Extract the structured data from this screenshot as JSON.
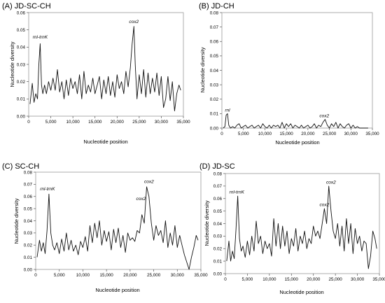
{
  "chart_data": [
    {
      "panel_title": "(A) JD-SC-CH",
      "type": "line",
      "xlabel": "Nucleotide position",
      "ylabel": "Nucleotide diversity",
      "xlim": [
        0,
        35000
      ],
      "ylim": [
        0,
        0.06
      ],
      "xticks": [
        0,
        5000,
        10000,
        15000,
        20000,
        25000,
        30000,
        35000
      ],
      "xtick_labels": [
        "0",
        "5,000",
        "10,000",
        "15,000",
        "20,000",
        "25,000",
        "30,000",
        "35,000"
      ],
      "yticks": [
        0,
        0.01,
        0.02,
        0.03,
        0.04,
        0.05,
        0.06
      ],
      "ytick_labels": [
        "0.00",
        "0.01",
        "0.02",
        "0.03",
        "0.04",
        "0.05",
        "0.06"
      ],
      "annotations": [
        {
          "text": "rnl-trnK",
          "x": 2600,
          "y": 0.045
        },
        {
          "text": "cox2",
          "x": 23800,
          "y": 0.054
        }
      ],
      "series": [
        {
          "x": [
            300,
            800,
            1200,
            1600,
            2000,
            2300,
            2600,
            2900,
            3200,
            3600,
            4000,
            4500,
            5000,
            5500,
            6000,
            6500,
            7000,
            7500,
            8000,
            8500,
            9000,
            9500,
            10000,
            10500,
            11000,
            11500,
            12000,
            12500,
            13000,
            13500,
            14000,
            14500,
            15000,
            15500,
            16000,
            16500,
            17000,
            17500,
            18000,
            18500,
            19000,
            19500,
            20000,
            20500,
            21000,
            21500,
            22000,
            22500,
            23000,
            23400,
            23800,
            24100,
            24500,
            25000,
            25500,
            26000,
            26500,
            27000,
            27500,
            28000,
            28500,
            29000,
            29500,
            30000,
            30500,
            31000,
            31500,
            32000,
            32500,
            33000,
            33500,
            34000,
            34400
          ],
          "y": [
            0.007,
            0.019,
            0.008,
            0.013,
            0.01,
            0.03,
            0.042,
            0.018,
            0.013,
            0.018,
            0.013,
            0.02,
            0.015,
            0.022,
            0.015,
            0.027,
            0.014,
            0.02,
            0.01,
            0.021,
            0.012,
            0.022,
            0.016,
            0.02,
            0.013,
            0.024,
            0.01,
            0.026,
            0.013,
            0.018,
            0.014,
            0.022,
            0.013,
            0.018,
            0.023,
            0.01,
            0.021,
            0.013,
            0.023,
            0.012,
            0.02,
            0.011,
            0.024,
            0.016,
            0.02,
            0.013,
            0.026,
            0.017,
            0.028,
            0.042,
            0.052,
            0.03,
            0.01,
            0.024,
            0.013,
            0.027,
            0.011,
            0.025,
            0.013,
            0.022,
            0.014,
            0.025,
            0.012,
            0.023,
            0.005,
            0.01,
            0.023,
            0.009,
            0.02,
            0.003,
            0.013,
            0.018,
            0.015
          ]
        }
      ]
    },
    {
      "panel_title": "(B) JD-CH",
      "type": "line",
      "xlabel": "Nucleotide position",
      "ylabel": "Nucleotide diversity",
      "xlim": [
        0,
        35000
      ],
      "ylim": [
        0,
        0.08
      ],
      "xticks": [
        0,
        5000,
        10000,
        15000,
        20000,
        25000,
        30000,
        35000
      ],
      "xtick_labels": [
        "0",
        "5,000",
        "10,000",
        "15,000",
        "20,000",
        "25,000",
        "30,000",
        "35,000"
      ],
      "yticks": [
        0,
        0.01,
        0.02,
        0.03,
        0.04,
        0.05,
        0.06,
        0.07,
        0.08
      ],
      "ytick_labels": [
        "0.00",
        "0.01",
        "0.02",
        "0.03",
        "0.04",
        "0.05",
        "0.06",
        "0.07",
        "0.08"
      ],
      "annotations": [
        {
          "text": "rnl",
          "x": 1300,
          "y": 0.0115
        },
        {
          "text": "cox2",
          "x": 23800,
          "y": 0.0075
        }
      ],
      "series": [
        {
          "x": [
            300,
            700,
            1000,
            1300,
            1600,
            2000,
            2500,
            3000,
            3500,
            4000,
            4500,
            5000,
            5500,
            6000,
            6500,
            7000,
            7500,
            8000,
            8500,
            9000,
            9500,
            10000,
            10500,
            11000,
            11500,
            12000,
            12500,
            13000,
            13500,
            14000,
            14500,
            15000,
            15500,
            16000,
            16500,
            17000,
            17500,
            18000,
            18500,
            19000,
            19500,
            20000,
            20500,
            21000,
            21500,
            22000,
            22500,
            23000,
            23500,
            24000,
            24500,
            25000,
            25500,
            26000,
            26500,
            27000,
            27500,
            28000,
            28500,
            29000,
            29500,
            30000,
            30500,
            31000,
            31500,
            32000,
            32500,
            33000,
            33500,
            34000
          ],
          "y": [
            0.0,
            0.001,
            0.009,
            0.01,
            0.002,
            0.0,
            0.001,
            0.0,
            0.002,
            0.003,
            0.0,
            0.001,
            0.002,
            0.0,
            0.001,
            0.002,
            0.0,
            0.001,
            0.002,
            0.0,
            0.003,
            0.001,
            0.0,
            0.002,
            0.0,
            0.002,
            0.001,
            0.002,
            0.0,
            0.004,
            0.0,
            0.003,
            0.001,
            0.003,
            0.0,
            0.002,
            0.001,
            0.0,
            0.002,
            0.0,
            0.001,
            0.002,
            0.0,
            0.001,
            0.003,
            0.0,
            0.002,
            0.001,
            0.004,
            0.006,
            0.002,
            0.0,
            0.003,
            0.001,
            0.004,
            0.0,
            0.003,
            0.001,
            0.0,
            0.002,
            0.003,
            0.0,
            0.002,
            0.0,
            0.001,
            0.0,
            0.0,
            0.0,
            0.0,
            0.0
          ]
        }
      ]
    },
    {
      "panel_title": "(C) SC-CH",
      "type": "line",
      "xlabel": "Nucleotide position",
      "ylabel": "Nucleotide diversity",
      "xlim": [
        0,
        35000
      ],
      "ylim": [
        0,
        0.08
      ],
      "xticks": [
        0,
        5000,
        10000,
        15000,
        20000,
        25000,
        30000,
        35000
      ],
      "xtick_labels": [
        "0",
        "5,000",
        "10,000",
        "15,000",
        "20,000",
        "25,000",
        "30,000",
        "35,000"
      ],
      "yticks": [
        0,
        0.01,
        0.02,
        0.03,
        0.04,
        0.05,
        0.06,
        0.07,
        0.08
      ],
      "ytick_labels": [
        "0.00",
        "0.01",
        "0.02",
        "0.03",
        "0.04",
        "0.05",
        "0.06",
        "0.07",
        "0.08"
      ],
      "annotations": [
        {
          "text": "rnl-trnK",
          "x": 2500,
          "y": 0.065
        },
        {
          "text": "cox2",
          "x": 22300,
          "y": 0.057
        },
        {
          "text": "cox2",
          "x": 24000,
          "y": 0.071
        }
      ],
      "series": [
        {
          "x": [
            300,
            800,
            1200,
            1600,
            2000,
            2400,
            2800,
            3200,
            3600,
            4000,
            4500,
            5000,
            5500,
            6000,
            6500,
            7000,
            7500,
            8000,
            8500,
            9000,
            9500,
            10000,
            10500,
            11000,
            11500,
            12000,
            12500,
            13000,
            13500,
            14000,
            14500,
            15000,
            15500,
            16000,
            16500,
            17000,
            17500,
            18000,
            18500,
            19000,
            19500,
            20000,
            20500,
            21000,
            21500,
            22000,
            22500,
            23000,
            23500,
            24000,
            24500,
            25000,
            25500,
            26000,
            26500,
            27000,
            27500,
            28000,
            28500,
            29000,
            29500,
            30000,
            30500,
            31000,
            31500,
            32000,
            32500,
            33000,
            33500,
            34000,
            34400
          ],
          "y": [
            0.01,
            0.024,
            0.015,
            0.022,
            0.013,
            0.032,
            0.062,
            0.03,
            0.02,
            0.016,
            0.022,
            0.013,
            0.025,
            0.015,
            0.03,
            0.016,
            0.024,
            0.015,
            0.02,
            0.012,
            0.023,
            0.018,
            0.027,
            0.015,
            0.036,
            0.022,
            0.038,
            0.026,
            0.04,
            0.02,
            0.032,
            0.023,
            0.031,
            0.016,
            0.033,
            0.022,
            0.034,
            0.018,
            0.028,
            0.014,
            0.03,
            0.024,
            0.026,
            0.023,
            0.032,
            0.03,
            0.045,
            0.038,
            0.068,
            0.06,
            0.038,
            0.024,
            0.036,
            0.028,
            0.032,
            0.022,
            0.04,
            0.018,
            0.03,
            0.02,
            0.036,
            0.018,
            0.028,
            0.02,
            0.012,
            0.006,
            0.0,
            0.01,
            0.018,
            0.028,
            0.024
          ]
        }
      ]
    },
    {
      "panel_title": "(D) JD-SC",
      "type": "line",
      "xlabel": "Nucleotide position",
      "ylabel": "Nucleotide diversity",
      "xlim": [
        0,
        35000
      ],
      "ylim": [
        0,
        0.08
      ],
      "xticks": [
        0,
        5000,
        10000,
        15000,
        20000,
        25000,
        30000,
        35000
      ],
      "xtick_labels": [
        "0",
        "5,000",
        "10,000",
        "15,000",
        "20,000",
        "25,000",
        "30,000",
        "35,000"
      ],
      "yticks": [
        0,
        0.01,
        0.02,
        0.03,
        0.04,
        0.05,
        0.06,
        0.07,
        0.08
      ],
      "ytick_labels": [
        "0.00",
        "0.01",
        "0.02",
        "0.03",
        "0.04",
        "0.05",
        "0.06",
        "0.07",
        "0.08"
      ],
      "annotations": [
        {
          "text": "rnl-trnK",
          "x": 2600,
          "y": 0.064
        },
        {
          "text": "cox2",
          "x": 22500,
          "y": 0.054
        },
        {
          "text": "cox2",
          "x": 24000,
          "y": 0.072
        }
      ],
      "series": [
        {
          "x": [
            300,
            800,
            1200,
            1600,
            2000,
            2400,
            2800,
            3200,
            3600,
            4000,
            4500,
            5000,
            5500,
            6000,
            6500,
            7000,
            7500,
            8000,
            8500,
            9000,
            9500,
            10000,
            10500,
            11000,
            11500,
            12000,
            12500,
            13000,
            13500,
            14000,
            14500,
            15000,
            15500,
            16000,
            16500,
            17000,
            17500,
            18000,
            18500,
            19000,
            19500,
            20000,
            20500,
            21000,
            21500,
            22000,
            22500,
            23000,
            23500,
            24000,
            24500,
            25000,
            25500,
            26000,
            26500,
            27000,
            27500,
            28000,
            28500,
            29000,
            29500,
            30000,
            30500,
            31000,
            31500,
            32000,
            32500,
            33000,
            33500,
            34000,
            34400
          ],
          "y": [
            0.01,
            0.026,
            0.01,
            0.018,
            0.012,
            0.035,
            0.062,
            0.028,
            0.018,
            0.022,
            0.013,
            0.026,
            0.015,
            0.03,
            0.018,
            0.042,
            0.024,
            0.03,
            0.016,
            0.026,
            0.02,
            0.024,
            0.014,
            0.044,
            0.022,
            0.04,
            0.02,
            0.038,
            0.022,
            0.034,
            0.016,
            0.028,
            0.022,
            0.036,
            0.018,
            0.03,
            0.024,
            0.034,
            0.02,
            0.028,
            0.024,
            0.038,
            0.03,
            0.034,
            0.028,
            0.04,
            0.052,
            0.04,
            0.07,
            0.05,
            0.034,
            0.028,
            0.04,
            0.022,
            0.038,
            0.018,
            0.044,
            0.024,
            0.04,
            0.016,
            0.036,
            0.024,
            0.03,
            0.018,
            0.026,
            0.024,
            0.004,
            0.014,
            0.034,
            0.028,
            0.02
          ]
        }
      ]
    }
  ]
}
